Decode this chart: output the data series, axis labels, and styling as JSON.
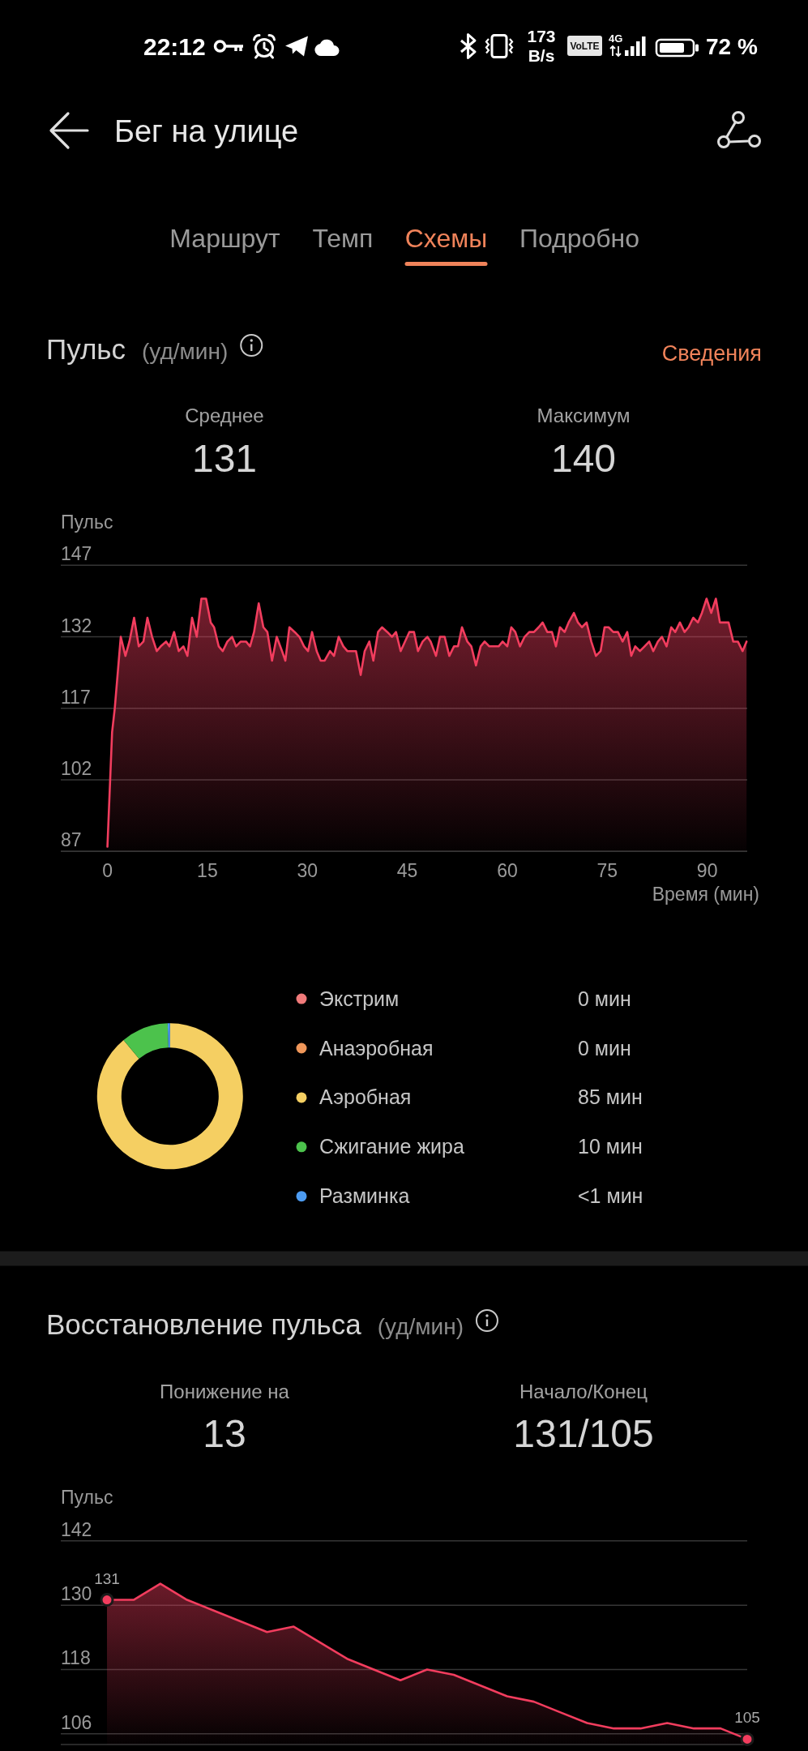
{
  "chart_data": [
    {
      "type": "other",
      "title": "Бег на улице",
      "annotations": [
        "22:12",
        "173",
        "B/s",
        "VoLTE",
        "4G",
        "72 %",
        "Маршрут",
        "Темп",
        "Схемы",
        "Подробно"
      ]
    },
    {
      "type": "area",
      "title": "Пульс",
      "subtitle": "(уд/мин)",
      "ylabel": "Пульс",
      "xlabel": "Время (мин)",
      "annotations": [
        "Сведения",
        "Среднее",
        "131",
        "Максимум",
        "140"
      ],
      "color": "#f23d5e",
      "x": [
        0,
        0.7,
        1.1,
        2.0,
        2.7,
        3.3,
        4.0,
        4.7,
        5.4,
        6.0,
        6.7,
        7.4,
        8.0,
        8.8,
        9.3,
        10.0,
        10.7,
        11.4,
        12.0,
        12.7,
        13.4,
        14.1,
        14.8,
        15.5,
        16.0,
        16.7,
        17.3,
        18.0,
        18.7,
        19.3,
        20.0,
        20.8,
        21.4,
        22.0,
        22.7,
        23.4,
        24.0,
        24.7,
        25.4,
        26.2,
        26.7,
        27.3,
        28.1,
        28.8,
        29.5,
        30.1,
        30.7,
        31.4,
        32.0,
        32.6,
        33.4,
        34.0,
        34.7,
        35.4,
        36.0,
        37.3,
        38.0,
        38.6,
        39.3,
        39.9,
        40.6,
        41.2,
        42.0,
        42.7,
        43.3,
        44.0,
        45.3,
        46.0,
        46.6,
        47.3,
        48.0,
        48.5,
        49.3,
        49.9,
        50.6,
        51.3,
        52.0,
        52.6,
        53.2,
        54.0,
        54.6,
        55.3,
        56.0,
        56.6,
        57.3,
        58.7,
        59.3,
        60.0,
        60.6,
        61.2,
        61.9,
        62.6,
        63.3,
        64.0,
        64.7,
        65.3,
        66.0,
        66.7,
        67.3,
        67.9,
        68.6,
        69.2,
        70.0,
        70.6,
        71.2,
        71.9,
        72.6,
        73.3,
        74.0,
        74.6,
        75.2,
        75.9,
        76.6,
        77.3,
        78.0,
        78.6,
        79.2,
        79.9,
        80.6,
        81.3,
        81.9,
        82.6,
        83.2,
        83.9,
        84.6,
        85.2,
        85.9,
        86.6,
        87.2,
        87.9,
        88.6,
        89.2,
        89.9,
        90.6,
        91.3,
        91.9,
        93.2,
        93.9,
        94.6,
        95.3,
        95.9
      ],
      "values": [
        88,
        112,
        117,
        132,
        128,
        131,
        136,
        130,
        131,
        136,
        132,
        129,
        130,
        131,
        130,
        133,
        129,
        130,
        128,
        136,
        132,
        140,
        140,
        135,
        134,
        130,
        129,
        131,
        132,
        130,
        131,
        131,
        130,
        133,
        139,
        134,
        133,
        127,
        132,
        129,
        127,
        134,
        133,
        132,
        130,
        129,
        133,
        129,
        127,
        127,
        129,
        128,
        132,
        130,
        129,
        129,
        124,
        129,
        131,
        127,
        133,
        134,
        133,
        132,
        133,
        129,
        133,
        133,
        129,
        131,
        132,
        131,
        128,
        132,
        132,
        128,
        130,
        130,
        134,
        131,
        130,
        126,
        130,
        131,
        130,
        130,
        131,
        130,
        134,
        133,
        130,
        132,
        133,
        133,
        134,
        135,
        133,
        133,
        130,
        134,
        133,
        135,
        137,
        135,
        134,
        135,
        131,
        128,
        129,
        134,
        134,
        133,
        133,
        131,
        133,
        128,
        130,
        129,
        130,
        131,
        129,
        131,
        132,
        130,
        134,
        133,
        135,
        133,
        134,
        136,
        135,
        137,
        140,
        137,
        140,
        135,
        135,
        131,
        131,
        129,
        131
      ],
      "xlim": [
        -7,
        96
      ],
      "xticks": [
        0,
        15,
        30,
        45,
        60,
        75,
        90
      ],
      "ylim": [
        87,
        147
      ],
      "yticks": [
        87,
        102,
        117,
        132,
        147
      ],
      "grid": "y"
    },
    {
      "type": "donut",
      "categories": [
        "Экстрим",
        "Анаэробная",
        "Аэробная",
        "Сжигание жира",
        "Разминка"
      ],
      "values": [
        0,
        0,
        85,
        10,
        0.5
      ],
      "value_labels": [
        "0 мин",
        "0 мин",
        "85 мин",
        "10 мин",
        "<1 мин"
      ],
      "colors": [
        "#f07a7a",
        "#f0975a",
        "#f5cf62",
        "#4cc24c",
        "#4d9cf2"
      ],
      "legend": "right"
    },
    {
      "type": "area",
      "title": "Восстановление пульса",
      "subtitle": "(уд/мин)",
      "ylabel": "Пульс",
      "annotations": [
        "Понижение на",
        "13",
        "Начало/Конец",
        "131/105"
      ],
      "color": "#f23d5e",
      "categories": [
        null,
        null,
        null,
        null,
        null,
        null,
        null,
        null,
        null,
        null,
        null,
        null,
        null,
        null,
        null,
        null,
        null,
        null,
        null,
        null,
        null,
        null,
        null,
        null,
        null
      ],
      "values": [
        131,
        131,
        134,
        131,
        129,
        127,
        125,
        126,
        123,
        120,
        118,
        116,
        118,
        117,
        115,
        113,
        112,
        110,
        108,
        107,
        107,
        108,
        107,
        107,
        105
      ],
      "value_labels": [
        "131",
        null,
        null,
        null,
        null,
        null,
        null,
        null,
        null,
        null,
        null,
        null,
        null,
        null,
        null,
        null,
        null,
        null,
        null,
        null,
        null,
        null,
        null,
        null,
        "105"
      ],
      "ylim": [
        104,
        142
      ],
      "yticks": [
        106,
        118,
        130,
        142
      ],
      "grid": "y",
      "tick_labels": "y"
    }
  ]
}
